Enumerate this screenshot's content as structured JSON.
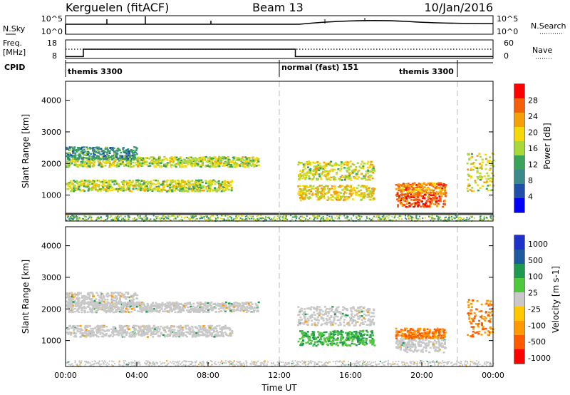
{
  "header": {
    "radar": "Kerguelen (fitACF)",
    "beam": "Beam 13",
    "date": "10/Jan/2016"
  },
  "colors": {
    "scale_power": [
      "#0000ff",
      "#1f4fa8",
      "#3a8a8a",
      "#3aa35a",
      "#a8d83a",
      "#f5d80a",
      "#f5a00a",
      "#f5600a",
      "#ff0000"
    ],
    "scale_velocity": [
      "#ff0000",
      "#ff5a00",
      "#ff9a00",
      "#ffc800",
      "#c8c8c8",
      "#50c83c",
      "#1e9a50",
      "#1e5aa0",
      "#1e32c8"
    ]
  },
  "chart_data": [
    {
      "type": "line",
      "panel": "noise",
      "labels_left": [
        "N.Sky"
      ],
      "labels_right": [
        "N.Search"
      ],
      "yticks_left": [
        "10^5",
        "10^0"
      ],
      "yticks_right": [
        "10^5",
        "10^0"
      ]
    },
    {
      "type": "line",
      "panel": "frequency",
      "labels_left": [
        "Freq.",
        "[MHz]"
      ],
      "labels_right": [
        "Nave"
      ],
      "yticks_left": [
        "18",
        "8"
      ],
      "yticks_right": [
        "60",
        "0"
      ],
      "freq_steps": [
        {
          "t": 0.0,
          "mhz": 9
        },
        {
          "t": 1.0,
          "mhz": 13
        },
        {
          "t": 12.9,
          "mhz": 9
        },
        {
          "t": 24.0,
          "mhz": 9
        }
      ],
      "nave_level": 25
    },
    {
      "type": "table",
      "panel": "cpid",
      "label": "CPID",
      "segments": [
        {
          "start": 0.0,
          "end": 12.0,
          "name": "themis 3300"
        },
        {
          "start": 12.0,
          "end": 22.0,
          "name": "normal (fast) 151"
        },
        {
          "start": 22.0,
          "end": 24.0,
          "name": "themis 3300"
        }
      ]
    },
    {
      "type": "heatmap",
      "panel": "power",
      "ylabel": "Slant Range [km]",
      "ylim": [
        180,
        4600
      ],
      "yticks": [
        1000,
        2000,
        3000,
        4000
      ],
      "colorbar_label": "Power [dB]",
      "colorbar_ticks": [
        4,
        8,
        12,
        16,
        20,
        24,
        28
      ],
      "colorbar_range": [
        0,
        32
      ],
      "scatter_bands": [
        {
          "t0": 0.0,
          "t1": 10.8,
          "r_center": 2080,
          "r_width": 160,
          "val": 17
        },
        {
          "t0": 0.0,
          "t1": 9.3,
          "r_center": 1320,
          "r_width": 180,
          "val": 17
        },
        {
          "t0": 0.0,
          "t1": 4.0,
          "r_center": 2350,
          "r_width": 200,
          "val": 10
        },
        {
          "t0": 13.0,
          "t1": 17.3,
          "r_center": 1100,
          "r_width": 240,
          "val": 20
        },
        {
          "t0": 13.0,
          "t1": 17.3,
          "r_center": 1800,
          "r_width": 300,
          "val": 18
        },
        {
          "t0": 18.5,
          "t1": 21.3,
          "r_center": 870,
          "r_width": 220,
          "val": 27
        },
        {
          "t0": 18.5,
          "t1": 21.3,
          "r_center": 1250,
          "r_width": 160,
          "val": 24
        },
        {
          "t0": 22.5,
          "t1": 24.0,
          "r_center": 1750,
          "r_width": 600,
          "val": 18
        }
      ]
    },
    {
      "type": "heatmap",
      "panel": "velocity",
      "xlabel": "Time UT",
      "ylabel": "Slant Range [km]",
      "ylim": [
        180,
        4600
      ],
      "yticks": [
        1000,
        2000,
        3000,
        4000
      ],
      "xlim": [
        0,
        24
      ],
      "xticks": [
        "00:00",
        "04:00",
        "08:00",
        "12:00",
        "16:00",
        "20:00",
        "00:00"
      ],
      "colorbar_label": "Velocity [m s-1]",
      "colorbar_ticks": [
        "1000",
        "500",
        "100",
        "25",
        "-25",
        "-100",
        "-500",
        "-1000"
      ],
      "scatter_bands": [
        {
          "t0": 0.0,
          "t1": 10.8,
          "r_center": 2080,
          "r_width": 160,
          "val": 0
        },
        {
          "t0": 0.0,
          "t1": 9.3,
          "r_center": 1320,
          "r_width": 180,
          "val": 0
        },
        {
          "t0": 0.0,
          "t1": 4.0,
          "r_center": 2350,
          "r_width": 200,
          "val": 0
        },
        {
          "t0": 13.0,
          "t1": 17.3,
          "r_center": 1100,
          "r_width": 240,
          "val": 150
        },
        {
          "t0": 13.0,
          "t1": 17.3,
          "r_center": 1800,
          "r_width": 300,
          "val": 0
        },
        {
          "t0": 18.5,
          "t1": 21.3,
          "r_center": 870,
          "r_width": 220,
          "val": 0
        },
        {
          "t0": 18.5,
          "t1": 21.3,
          "r_center": 1250,
          "r_width": 160,
          "val": -300
        },
        {
          "t0": 22.5,
          "t1": 24.0,
          "r_center": 1750,
          "r_width": 600,
          "val": -300
        }
      ]
    }
  ]
}
